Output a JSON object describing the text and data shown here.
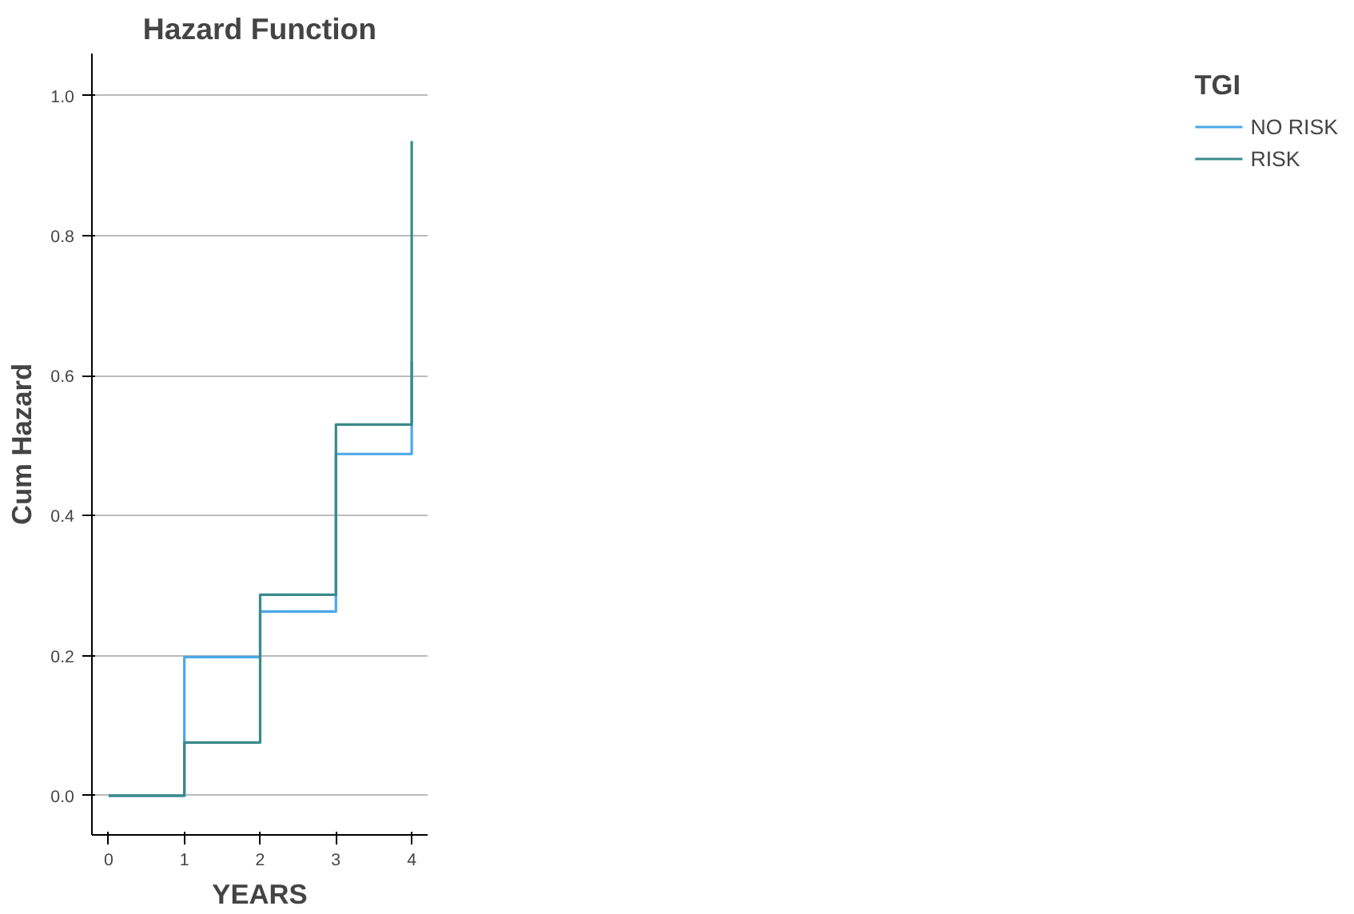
{
  "chart_data": {
    "type": "step",
    "title": "Hazard Function",
    "xlabel": "YEARS",
    "ylabel": "Cum Hazard",
    "legend_title": "TGI",
    "x": [
      0,
      1,
      2,
      3,
      4
    ],
    "series": [
      {
        "name": "NO RISK",
        "color": "#4aa8e8",
        "values": [
          0,
          0.198,
          0.263,
          0.488,
          0.62
        ]
      },
      {
        "name": "RISK",
        "color": "#3a8a8a",
        "values": [
          0,
          0.076,
          0.287,
          0.53,
          0.935
        ]
      }
    ],
    "xlim": [
      -0.22,
      4.21
    ],
    "ylim": [
      -0.056,
      1.06
    ],
    "xticks": [
      0,
      1,
      2,
      3,
      4
    ],
    "yticks": [
      {
        "value": 0,
        "label": "0.0"
      },
      {
        "value": 0.2,
        "label": "0.2"
      },
      {
        "value": 0.4,
        "label": "0.4"
      },
      {
        "value": 0.6,
        "label": "0.6"
      },
      {
        "value": 0.8,
        "label": "0.8"
      },
      {
        "value": 1,
        "label": "1.0"
      }
    ],
    "grid": "y",
    "legend": "top right",
    "marker": "none",
    "line_style": "solid"
  }
}
